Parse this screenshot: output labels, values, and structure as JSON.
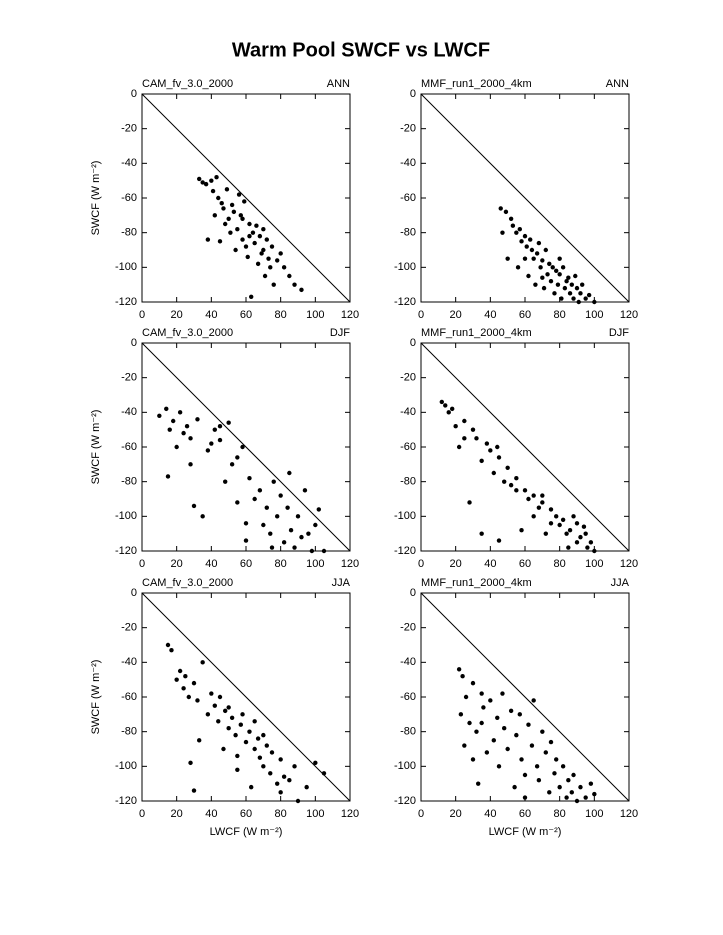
{
  "title": "Warm Pool SWCF vs LWCF",
  "chart_data": [
    {
      "type": "scatter",
      "title": "CAM_fv_3.0_2000",
      "season": "ANN",
      "y_label": "SWCF (W m⁻²)",
      "x": [
        33,
        35,
        37,
        38,
        40,
        41,
        42,
        43,
        44,
        45,
        46,
        47,
        48,
        49,
        50,
        51,
        52,
        53,
        54,
        55,
        56,
        57,
        58,
        59,
        60,
        61,
        62,
        63,
        64,
        65,
        66,
        67,
        68,
        69,
        70,
        71,
        72,
        73,
        74,
        75,
        76,
        78,
        80,
        82,
        85,
        88,
        92,
        62,
        70,
        58
      ],
      "values": [
        -49,
        -51,
        -52,
        -84,
        -50,
        -56,
        -70,
        -48,
        -60,
        -85,
        -63,
        -66,
        -75,
        -55,
        -72,
        -80,
        -64,
        -68,
        -90,
        -78,
        -58,
        -70,
        -84,
        -62,
        -88,
        -94,
        -75,
        -117,
        -80,
        -86,
        -76,
        -98,
        -82,
        -92,
        -90,
        -105,
        -84,
        -95,
        -100,
        -88,
        -110,
        -96,
        -92,
        -100,
        -105,
        -110,
        -113,
        -82,
        -78,
        -72
      ],
      "color": "#000000",
      "xlim": [
        0,
        120
      ],
      "ylim": [
        -120,
        0
      ],
      "xticks": [
        0,
        20,
        40,
        60,
        80,
        100,
        120
      ],
      "yticks": [
        0,
        -20,
        -40,
        -60,
        -80,
        -100,
        -120
      ]
    },
    {
      "type": "scatter",
      "title": "MMF_run1_2000_4km",
      "season": "ANN",
      "x": [
        46,
        47,
        49,
        50,
        52,
        53,
        55,
        56,
        57,
        58,
        60,
        61,
        62,
        63,
        64,
        65,
        66,
        67,
        68,
        69,
        70,
        71,
        72,
        73,
        74,
        75,
        76,
        77,
        78,
        79,
        80,
        81,
        82,
        83,
        84,
        85,
        86,
        87,
        88,
        89,
        90,
        91,
        92,
        93,
        95,
        97,
        100,
        60,
        70,
        80
      ],
      "values": [
        -66,
        -80,
        -68,
        -95,
        -72,
        -76,
        -80,
        -100,
        -78,
        -85,
        -82,
        -88,
        -105,
        -84,
        -90,
        -95,
        -110,
        -92,
        -86,
        -100,
        -96,
        -112,
        -90,
        -104,
        -98,
        -108,
        -100,
        -115,
        -102,
        -110,
        -104,
        -118,
        -100,
        -112,
        -108,
        -106,
        -115,
        -110,
        -118,
        -105,
        -112,
        -120,
        -115,
        -110,
        -118,
        -116,
        -120,
        -95,
        -106,
        -95
      ],
      "color": "#000000",
      "xlim": [
        0,
        120
      ],
      "ylim": [
        -120,
        0
      ],
      "xticks": [
        0,
        20,
        40,
        60,
        80,
        100,
        120
      ],
      "yticks": [
        0,
        -20,
        -40,
        -60,
        -80,
        -100,
        -120
      ]
    },
    {
      "type": "scatter",
      "title": "CAM_fv_3.0_2000",
      "season": "DJF",
      "y_label": "SWCF (W m⁻²)",
      "x": [
        10,
        14,
        15,
        16,
        18,
        20,
        22,
        24,
        26,
        28,
        30,
        32,
        35,
        38,
        40,
        42,
        45,
        48,
        50,
        52,
        55,
        58,
        60,
        62,
        65,
        68,
        70,
        72,
        74,
        76,
        78,
        80,
        82,
        84,
        86,
        88,
        90,
        92,
        94,
        96,
        98,
        100,
        102,
        105,
        28,
        55,
        75,
        85,
        60,
        45
      ],
      "values": [
        -42,
        -38,
        -77,
        -50,
        -45,
        -60,
        -40,
        -52,
        -48,
        -55,
        -94,
        -44,
        -100,
        -62,
        -58,
        -50,
        -48,
        -80,
        -46,
        -70,
        -66,
        -60,
        -114,
        -78,
        -90,
        -85,
        -105,
        -95,
        -110,
        -80,
        -100,
        -88,
        -115,
        -95,
        -108,
        -118,
        -100,
        -112,
        -85,
        -110,
        -120,
        -105,
        -96,
        -120,
        -70,
        -92,
        -118,
        -75,
        -104,
        -56
      ],
      "color": "#000000",
      "xlim": [
        0,
        120
      ],
      "ylim": [
        -120,
        0
      ],
      "xticks": [
        0,
        20,
        40,
        60,
        80,
        100,
        120
      ],
      "yticks": [
        0,
        -20,
        -40,
        -60,
        -80,
        -100,
        -120
      ]
    },
    {
      "type": "scatter",
      "title": "MMF_run1_2000_4km",
      "season": "DJF",
      "x": [
        12,
        14,
        16,
        18,
        20,
        22,
        25,
        28,
        30,
        32,
        35,
        38,
        40,
        42,
        45,
        48,
        50,
        52,
        55,
        58,
        60,
        62,
        65,
        68,
        70,
        72,
        75,
        78,
        80,
        82,
        84,
        86,
        88,
        90,
        92,
        94,
        96,
        98,
        100,
        25,
        35,
        45,
        55,
        65,
        75,
        85,
        90,
        44,
        70,
        95
      ],
      "values": [
        -34,
        -36,
        -40,
        -38,
        -48,
        -60,
        -55,
        -92,
        -50,
        -55,
        -110,
        -58,
        -62,
        -75,
        -66,
        -80,
        -72,
        -82,
        -78,
        -108,
        -85,
        -90,
        -88,
        -95,
        -92,
        -110,
        -96,
        -100,
        -105,
        -102,
        -110,
        -108,
        -100,
        -115,
        -112,
        -106,
        -118,
        -115,
        -120,
        -45,
        -68,
        -114,
        -85,
        -100,
        -104,
        -118,
        -104,
        -60,
        -88,
        -110
      ],
      "color": "#000000",
      "xlim": [
        0,
        120
      ],
      "ylim": [
        -120,
        0
      ],
      "xticks": [
        0,
        20,
        40,
        60,
        80,
        100,
        120
      ],
      "yticks": [
        0,
        -20,
        -40,
        -60,
        -80,
        -100,
        -120
      ]
    },
    {
      "type": "scatter",
      "title": "CAM_fv_3.0_2000",
      "season": "JJA",
      "y_label": "SWCF (W m⁻²)",
      "x_label": "LWCF (W m⁻²)",
      "x": [
        15,
        17,
        20,
        22,
        24,
        25,
        27,
        28,
        30,
        32,
        33,
        35,
        38,
        40,
        42,
        44,
        45,
        47,
        48,
        50,
        52,
        54,
        55,
        57,
        58,
        60,
        62,
        63,
        65,
        67,
        68,
        70,
        72,
        74,
        75,
        78,
        80,
        82,
        85,
        88,
        90,
        95,
        100,
        105,
        30,
        50,
        65,
        80,
        55,
        70
      ],
      "values": [
        -30,
        -33,
        -50,
        -45,
        -55,
        -48,
        -60,
        -98,
        -52,
        -62,
        -85,
        -40,
        -70,
        -58,
        -65,
        -74,
        -60,
        -90,
        -68,
        -78,
        -72,
        -82,
        -102,
        -76,
        -70,
        -86,
        -80,
        -112,
        -90,
        -84,
        -95,
        -100,
        -88,
        -104,
        -92,
        -110,
        -96,
        -106,
        -108,
        -100,
        -120,
        -112,
        -98,
        -104,
        -114,
        -66,
        -74,
        -115,
        -94,
        -82
      ],
      "color": "#000000",
      "xlim": [
        0,
        120
      ],
      "ylim": [
        -120,
        0
      ],
      "xticks": [
        0,
        20,
        40,
        60,
        80,
        100,
        120
      ],
      "yticks": [
        0,
        -20,
        -40,
        -60,
        -80,
        -100,
        -120
      ]
    },
    {
      "type": "scatter",
      "title": "MMF_run1_2000_4km",
      "season": "JJA",
      "x_label": "LWCF (W m⁻²)",
      "x": [
        22,
        23,
        24,
        25,
        26,
        28,
        30,
        32,
        33,
        35,
        36,
        38,
        40,
        42,
        44,
        45,
        47,
        48,
        50,
        52,
        54,
        55,
        57,
        58,
        60,
        62,
        64,
        65,
        67,
        68,
        70,
        72,
        74,
        75,
        77,
        78,
        80,
        82,
        84,
        85,
        87,
        88,
        90,
        92,
        95,
        98,
        100,
        35,
        60,
        30
      ],
      "values": [
        -44,
        -70,
        -48,
        -88,
        -60,
        -75,
        -52,
        -80,
        -110,
        -58,
        -66,
        -92,
        -62,
        -85,
        -72,
        -100,
        -58,
        -78,
        -90,
        -68,
        -112,
        -82,
        -70,
        -96,
        -105,
        -76,
        -88,
        -62,
        -100,
        -108,
        -80,
        -92,
        -115,
        -86,
        -104,
        -96,
        -112,
        -100,
        -118,
        -108,
        -115,
        -105,
        -120,
        -112,
        -118,
        -110,
        -116,
        -75,
        -118,
        -96
      ],
      "color": "#000000",
      "xlim": [
        0,
        120
      ],
      "ylim": [
        -120,
        0
      ],
      "xticks": [
        0,
        20,
        40,
        60,
        80,
        100,
        120
      ],
      "yticks": [
        0,
        -20,
        -40,
        -60,
        -80,
        -100,
        -120
      ]
    }
  ]
}
